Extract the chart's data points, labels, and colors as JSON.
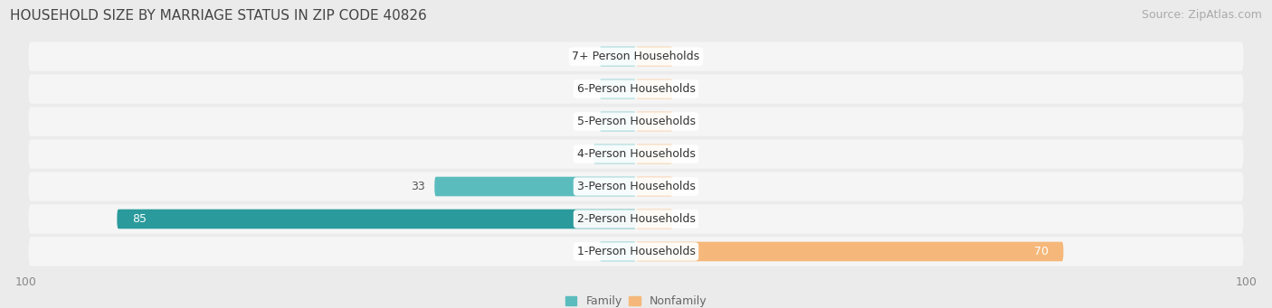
{
  "title": "HOUSEHOLD SIZE BY MARRIAGE STATUS IN ZIP CODE 40826",
  "source": "Source: ZipAtlas.com",
  "categories": [
    "7+ Person Households",
    "6-Person Households",
    "5-Person Households",
    "4-Person Households",
    "3-Person Households",
    "2-Person Households",
    "1-Person Households"
  ],
  "family_values": [
    0,
    6,
    3,
    7,
    33,
    85,
    0
  ],
  "nonfamily_values": [
    0,
    0,
    0,
    0,
    0,
    0,
    70
  ],
  "family_color": "#5bbcbe",
  "family_color_dark": "#2a9a9c",
  "nonfamily_color": "#f5b87a",
  "x_min": -100,
  "x_max": 100,
  "bg_color": "#ebebeb",
  "row_bg_color": "#f5f5f5",
  "title_fontsize": 11,
  "source_fontsize": 9,
  "label_fontsize": 9,
  "tick_fontsize": 9,
  "stub_size": 6
}
